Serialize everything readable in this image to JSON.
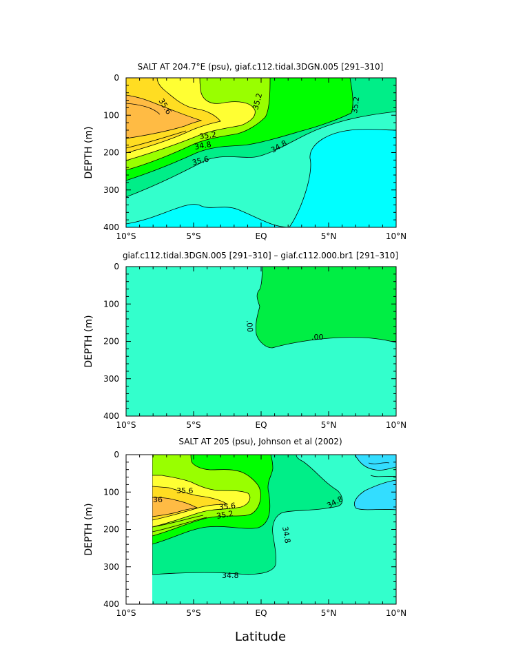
{
  "chart_data": [
    {
      "type": "contour",
      "title": "SALT AT 204.7°E (psu), giaf.c112.tidal.3DGN.005 [291–310]",
      "ylabel": "DEPTH (m)",
      "xticks": [
        "10°S",
        "5°S",
        "EQ",
        "5°N",
        "10°N"
      ],
      "yticks": [
        "0",
        "100",
        "200",
        "300",
        "400"
      ],
      "xlim": [
        -10,
        10
      ],
      "ylim": [
        0,
        400
      ],
      "contour_labels": [
        "35.6",
        "35.2",
        "34.8",
        "35.6",
        "35.2",
        "34.8",
        "35.2",
        "34.8"
      ],
      "levels": [
        34.6,
        34.8,
        35.0,
        35.2,
        35.4,
        35.6,
        35.8,
        36.0
      ],
      "colors": {
        "bg": "#00ffff",
        "b348": "#33ffcc",
        "b350": "#00ee88",
        "b352": "#00ff00",
        "b354": "#99ff00",
        "b356": "#ffff33",
        "b358": "#ffdd22",
        "b360": "#ffbb44"
      }
    },
    {
      "type": "contour",
      "title": "giaf.c112.tidal.3DGN.005 [291–310] – giaf.c112.000.br1 [291–310]",
      "ylabel": "DEPTH (m)",
      "xticks": [
        "10°S",
        "5°S",
        "EQ",
        "5°N",
        "10°N"
      ],
      "yticks": [
        "0",
        "100",
        "200",
        "300",
        "400"
      ],
      "xlim": [
        -10,
        10
      ],
      "ylim": [
        0,
        400
      ],
      "contour_labels": [
        ".00",
        ".00"
      ],
      "levels": [
        0.0
      ],
      "colors": {
        "neg": "#33ffcc",
        "pos": "#00ee44"
      }
    },
    {
      "type": "contour",
      "title": "SALT AT 205 (psu), Johnson et al (2002)",
      "ylabel": "DEPTH (m)",
      "xlabel": "Latitude",
      "xticks": [
        "10°S",
        "5°S",
        "EQ",
        "5°N",
        "10°N"
      ],
      "yticks": [
        "0",
        "100",
        "200",
        "300",
        "400"
      ],
      "xlim": [
        -10,
        10
      ],
      "ylim": [
        0,
        400
      ],
      "contour_labels": [
        "35.6",
        "36",
        "35.6",
        "35.2",
        "34.8",
        "34.8",
        "34.8"
      ],
      "levels": [
        34.6,
        34.8,
        35.0,
        35.2,
        35.4,
        35.6,
        35.8,
        36.0
      ],
      "colors": {
        "bg": "#33ffcc",
        "low": "#33ddff",
        "b350": "#00ee88",
        "b352": "#00ff00",
        "b354": "#99ff00",
        "b356": "#ffff33",
        "b358": "#ffdd22",
        "b360": "#ffbb44"
      }
    }
  ]
}
